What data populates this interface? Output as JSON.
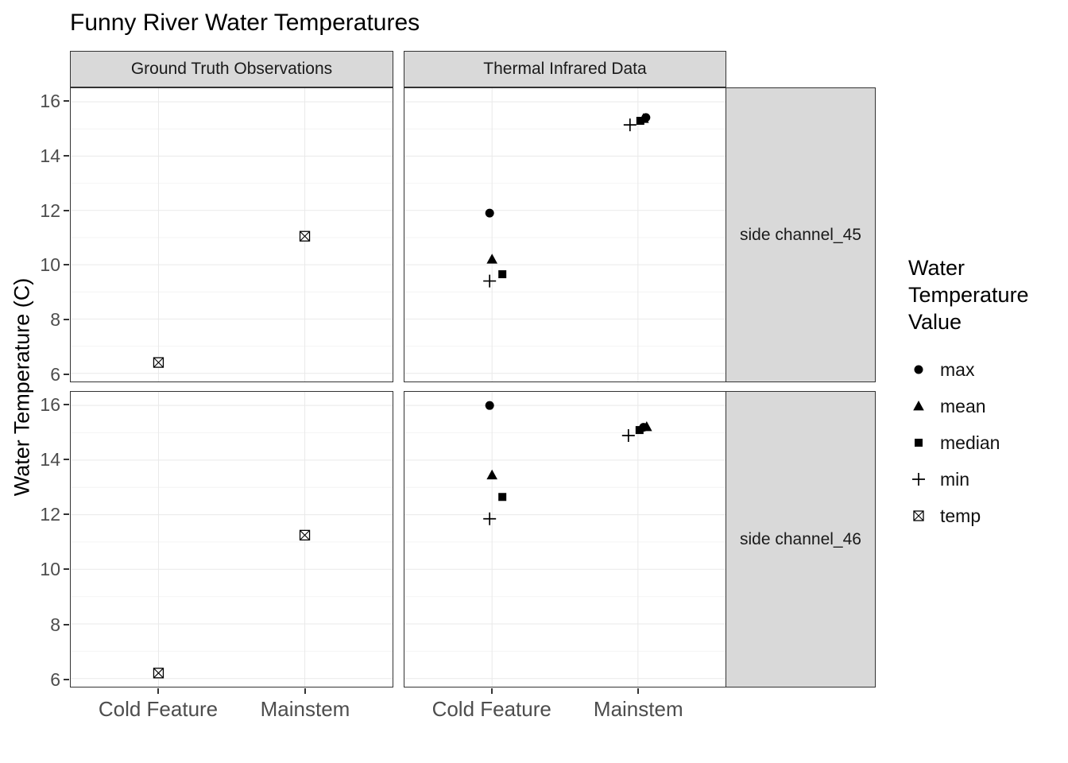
{
  "title": "Funny River Water Temperatures",
  "y_axis_title": "Water Temperature (C)",
  "legend": {
    "title_lines": [
      "Water",
      "Temperature",
      "Value"
    ],
    "items": [
      {
        "label": "max",
        "shape": "circle"
      },
      {
        "label": "mean",
        "shape": "triangle"
      },
      {
        "label": "median",
        "shape": "square"
      },
      {
        "label": "min",
        "shape": "plus"
      },
      {
        "label": "temp",
        "shape": "boxed-x"
      }
    ]
  },
  "colors": {
    "point": "#000000",
    "strip_bg": "#d9d9d9",
    "panel_border": "#333333",
    "grid_major": "#e9e9e9",
    "grid_minor": "#f4f4f4",
    "axis_text": "#4d4d4d"
  },
  "chart_data": {
    "type": "scatter",
    "title": "Funny River Water Temperatures",
    "ylabel": "Water Temperature (C)",
    "xlabel": "",
    "facet_columns": [
      "Ground Truth Observations",
      "Thermal Infrared Data"
    ],
    "facet_rows": [
      "side channel_45",
      "side channel_46"
    ],
    "x_categories": [
      "Cold Feature",
      "Mainstem"
    ],
    "ylim": [
      5.7,
      16.5
    ],
    "y_ticks": [
      6,
      8,
      10,
      12,
      14,
      16
    ],
    "grid": true,
    "legend_position": "right",
    "panels": [
      {
        "col": "Ground Truth Observations",
        "row": "side channel_45",
        "points": [
          {
            "x": "Cold Feature",
            "series": "temp",
            "value": 6.4
          },
          {
            "x": "Mainstem",
            "series": "temp",
            "value": 11.05
          }
        ]
      },
      {
        "col": "Thermal Infrared Data",
        "row": "side channel_45",
        "points": [
          {
            "x": "Cold Feature",
            "series": "max",
            "value": 11.9,
            "dx": -3
          },
          {
            "x": "Cold Feature",
            "series": "mean",
            "value": 10.2,
            "dx": 0
          },
          {
            "x": "Cold Feature",
            "series": "median",
            "value": 9.65,
            "dx": 13
          },
          {
            "x": "Cold Feature",
            "series": "min",
            "value": 9.4,
            "dx": -3
          },
          {
            "x": "Mainstem",
            "series": "min",
            "value": 15.15,
            "dx": -10
          },
          {
            "x": "Mainstem",
            "series": "median",
            "value": 15.3,
            "dx": 3
          },
          {
            "x": "Mainstem",
            "series": "mean",
            "value": 15.38,
            "dx": 7
          },
          {
            "x": "Mainstem",
            "series": "max",
            "value": 15.42,
            "dx": 10
          }
        ]
      },
      {
        "col": "Ground Truth Observations",
        "row": "side channel_46",
        "points": [
          {
            "x": "Cold Feature",
            "series": "temp",
            "value": 6.2
          },
          {
            "x": "Mainstem",
            "series": "temp",
            "value": 11.25
          }
        ]
      },
      {
        "col": "Thermal Infrared Data",
        "row": "side channel_46",
        "points": [
          {
            "x": "Cold Feature",
            "series": "max",
            "value": 16.0,
            "dx": -3
          },
          {
            "x": "Cold Feature",
            "series": "mean",
            "value": 13.45,
            "dx": 0
          },
          {
            "x": "Cold Feature",
            "series": "median",
            "value": 12.65,
            "dx": 13
          },
          {
            "x": "Cold Feature",
            "series": "min",
            "value": 11.85,
            "dx": -3
          },
          {
            "x": "Mainstem",
            "series": "min",
            "value": 14.9,
            "dx": -12
          },
          {
            "x": "Mainstem",
            "series": "median",
            "value": 15.1,
            "dx": 2
          },
          {
            "x": "Mainstem",
            "series": "max",
            "value": 15.2,
            "dx": 7
          },
          {
            "x": "Mainstem",
            "series": "mean",
            "value": 15.22,
            "dx": 11
          }
        ]
      }
    ]
  }
}
